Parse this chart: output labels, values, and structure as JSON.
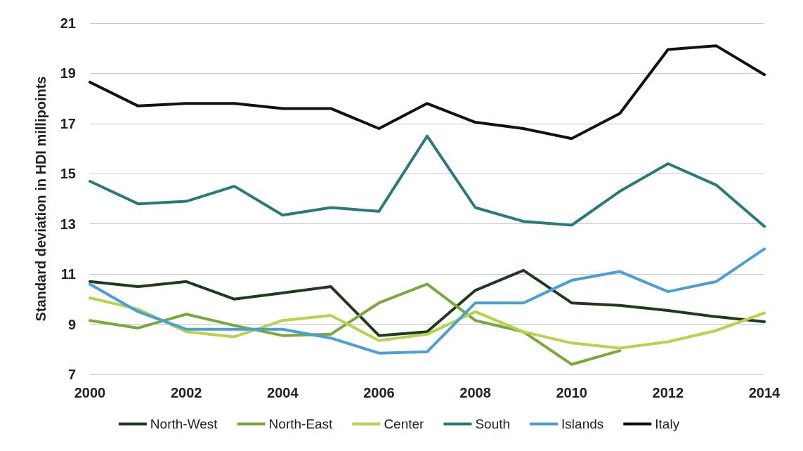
{
  "chart_data": {
    "type": "line",
    "ylabel": "Standard deviation in HDI millipoints",
    "x": [
      2000,
      2001,
      2002,
      2003,
      2004,
      2005,
      2006,
      2007,
      2008,
      2009,
      2010,
      2011,
      2012,
      2013,
      2014
    ],
    "xlim": [
      2000,
      2014
    ],
    "xticks": [
      2000,
      2002,
      2004,
      2006,
      2008,
      2010,
      2012,
      2014
    ],
    "ylim": [
      7,
      21
    ],
    "yticks": [
      7,
      9,
      11,
      13,
      15,
      17,
      19,
      21
    ],
    "grid": "y",
    "legend": "bottom",
    "marker": "none",
    "line_style": "solid",
    "series": [
      {
        "name": "North-West",
        "color": "#1f3a1f",
        "values": [
          10.7,
          10.5,
          10.7,
          10.0,
          10.25,
          10.5,
          8.55,
          8.7,
          10.35,
          11.15,
          9.85,
          9.75,
          9.55,
          9.3,
          9.1
        ]
      },
      {
        "name": "North-East",
        "color": "#7aa83a",
        "values": [
          9.15,
          8.85,
          9.4,
          8.95,
          8.55,
          8.6,
          9.85,
          10.6,
          9.15,
          8.7,
          7.4,
          7.95,
          null,
          null,
          null
        ]
      },
      {
        "name": "Center",
        "color": "#b5d44a",
        "values": [
          10.05,
          9.6,
          8.7,
          8.5,
          9.15,
          9.35,
          8.35,
          8.6,
          9.5,
          8.7,
          8.25,
          8.05,
          8.3,
          8.75,
          9.45
        ]
      },
      {
        "name": "South",
        "color": "#2a7a78",
        "values": [
          14.7,
          13.8,
          13.9,
          14.5,
          13.35,
          13.65,
          13.5,
          16.5,
          13.65,
          13.1,
          12.95,
          14.3,
          15.4,
          14.55,
          12.9
        ]
      },
      {
        "name": "Islands",
        "color": "#4a9fd6",
        "values": [
          10.6,
          9.5,
          8.8,
          8.8,
          8.8,
          8.45,
          7.85,
          7.9,
          9.85,
          9.85,
          10.75,
          11.1,
          10.3,
          10.7,
          12.0
        ]
      },
      {
        "name": "Italy",
        "color": "#111111",
        "values": [
          18.65,
          17.7,
          17.8,
          17.8,
          17.6,
          17.6,
          16.8,
          17.8,
          17.05,
          16.8,
          16.4,
          17.4,
          19.95,
          20.1,
          18.95
        ]
      }
    ]
  }
}
